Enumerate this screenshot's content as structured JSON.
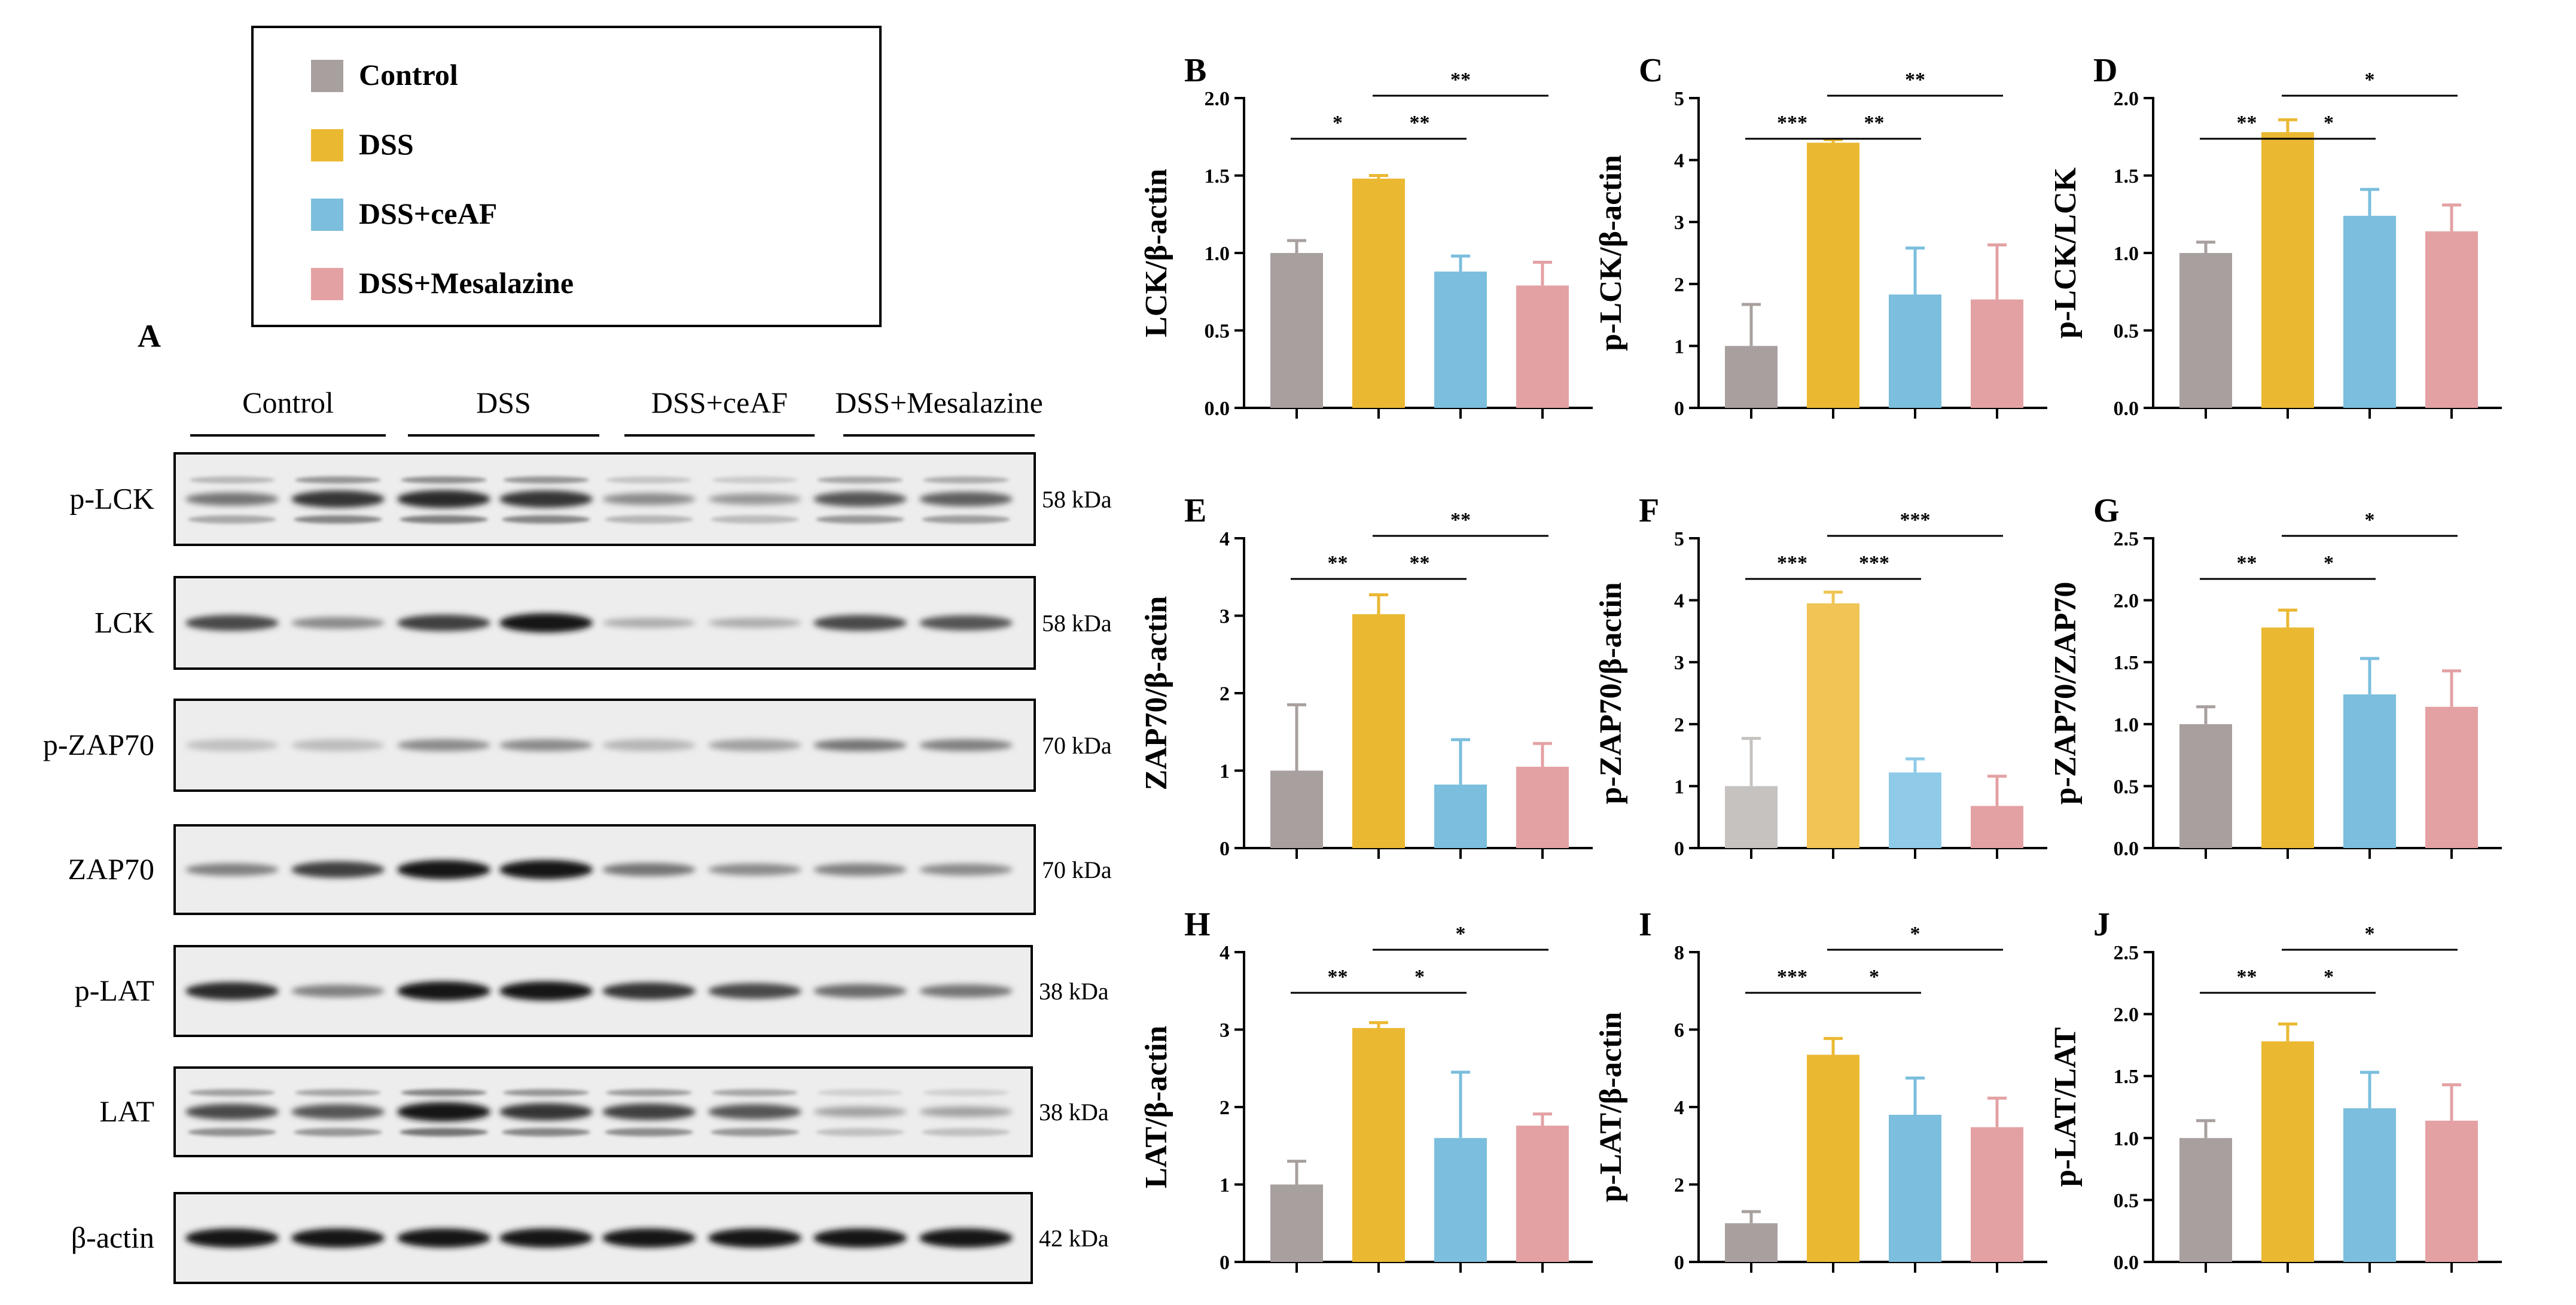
{
  "colors": {
    "Control": "#a8a09e",
    "DSS": "#ebb832",
    "DSS+ceAF": "#7bbedd",
    "DSS+Mesalazine": "#e3a1a3",
    "Control_light": "#c6c2c0",
    "DSS_light": "#f0c455",
    "DSS+ceAF_light": "#8fcbe8"
  },
  "legend": {
    "items": [
      {
        "label": "Control",
        "color": "#a8a09e"
      },
      {
        "label": "DSS",
        "color": "#ebb832"
      },
      {
        "label": "DSS+ceAF",
        "color": "#7bbedd"
      },
      {
        "label": "DSS+Mesalazine",
        "color": "#e3a1a3"
      }
    ]
  },
  "blot": {
    "panel_letter": "A",
    "groups": [
      "Control",
      "DSS",
      "DSS+ceAF",
      "DSS+Mesalazine"
    ],
    "rows": [
      {
        "protein": "p-LCK",
        "kda": "58 kDa",
        "intensity": [
          0.55,
          0.85,
          0.9,
          0.85,
          0.45,
          0.4,
          0.7,
          0.65
        ],
        "style": "multi"
      },
      {
        "protein": "LCK",
        "kda": "58 kDa",
        "intensity": [
          0.75,
          0.45,
          0.8,
          1.0,
          0.3,
          0.3,
          0.75,
          0.7
        ],
        "style": "single"
      },
      {
        "protein": "p-ZAP70",
        "kda": "70 kDa",
        "intensity": [
          0.2,
          0.22,
          0.45,
          0.45,
          0.25,
          0.35,
          0.55,
          0.5
        ],
        "style": "faint"
      },
      {
        "protein": "ZAP70",
        "kda": "70 kDa",
        "intensity": [
          0.5,
          0.8,
          1.0,
          1.0,
          0.55,
          0.45,
          0.5,
          0.45
        ],
        "style": "single"
      },
      {
        "protein": "p-LAT",
        "kda": "38 kDa",
        "intensity": [
          0.9,
          0.5,
          1.0,
          1.0,
          0.85,
          0.75,
          0.6,
          0.55
        ],
        "style": "single"
      },
      {
        "protein": "LAT",
        "kda": "38 kDa",
        "intensity": [
          0.75,
          0.7,
          1.0,
          0.85,
          0.8,
          0.7,
          0.35,
          0.35
        ],
        "style": "multi"
      },
      {
        "protein": "β-actin",
        "kda": "42 kDa",
        "intensity": [
          1.0,
          1.0,
          1.0,
          1.0,
          1.0,
          1.0,
          1.0,
          1.0
        ],
        "style": "single"
      }
    ]
  },
  "chart_data": [
    {
      "panel": "B",
      "type": "bar",
      "categories": [
        "Control",
        "DSS",
        "DSS+ceAF",
        "DSS+Mesalazine"
      ],
      "values": [
        1.0,
        1.48,
        0.88,
        0.79
      ],
      "errors": [
        0.08,
        0.02,
        0.1,
        0.15
      ],
      "ylabel": "LCK/β-actin",
      "ylim": [
        0,
        2.0
      ],
      "ticks": [
        "0.0",
        "0.5",
        "1.0",
        "1.5",
        "2.0"
      ],
      "sig": [
        {
          "from": 0,
          "to": 1,
          "label": "*",
          "level": 0
        },
        {
          "from": 1,
          "to": 2,
          "label": "**",
          "level": 0
        },
        {
          "from": 1,
          "to": 3,
          "label": "**",
          "level": 1
        }
      ]
    },
    {
      "panel": "C",
      "type": "bar",
      "categories": [
        "Control",
        "DSS",
        "DSS+ceAF",
        "DSS+Mesalazine"
      ],
      "values": [
        1.0,
        4.28,
        1.83,
        1.75
      ],
      "errors": [
        0.67,
        0.05,
        0.75,
        0.88
      ],
      "ylabel": "p-LCK/β-actin",
      "ylim": [
        0,
        5
      ],
      "ticks": [
        "0",
        "1",
        "2",
        "3",
        "4",
        "5"
      ],
      "sig": [
        {
          "from": 0,
          "to": 1,
          "label": "***",
          "level": 0
        },
        {
          "from": 1,
          "to": 2,
          "label": "**",
          "level": 0
        },
        {
          "from": 1,
          "to": 3,
          "label": "**",
          "level": 1
        }
      ]
    },
    {
      "panel": "D",
      "type": "bar",
      "categories": [
        "Control",
        "DSS",
        "DSS+ceAF",
        "DSS+Mesalazine"
      ],
      "values": [
        1.0,
        1.78,
        1.24,
        1.14
      ],
      "errors": [
        0.07,
        0.08,
        0.17,
        0.17
      ],
      "ylabel": "p-LCK/LCK",
      "ylim": [
        0,
        2.0
      ],
      "ticks": [
        "0.0",
        "0.5",
        "1.0",
        "1.5",
        "2.0"
      ],
      "sig": [
        {
          "from": 0,
          "to": 1,
          "label": "**",
          "level": 0
        },
        {
          "from": 1,
          "to": 2,
          "label": "*",
          "level": 0
        },
        {
          "from": 1,
          "to": 3,
          "label": "*",
          "level": 1
        }
      ]
    },
    {
      "panel": "E",
      "type": "bar",
      "categories": [
        "Control",
        "DSS",
        "DSS+ceAF",
        "DSS+Mesalazine"
      ],
      "values": [
        1.0,
        3.02,
        0.82,
        1.05
      ],
      "errors": [
        0.85,
        0.25,
        0.58,
        0.3
      ],
      "ylabel": "ZAP70/β-actin",
      "ylim": [
        0,
        4
      ],
      "ticks": [
        "0",
        "1",
        "2",
        "3",
        "4"
      ],
      "sig": [
        {
          "from": 0,
          "to": 1,
          "label": "**",
          "level": 0
        },
        {
          "from": 1,
          "to": 2,
          "label": "**",
          "level": 0
        },
        {
          "from": 1,
          "to": 3,
          "label": "**",
          "level": 1
        }
      ]
    },
    {
      "panel": "F",
      "type": "bar",
      "categories": [
        "Control",
        "DSS",
        "DSS+ceAF",
        "DSS+Mesalazine"
      ],
      "values": [
        1.0,
        3.95,
        1.22,
        0.68
      ],
      "errors": [
        0.77,
        0.18,
        0.22,
        0.48
      ],
      "ylabel": "p-ZAP70/β-actin",
      "ylim": [
        0,
        5
      ],
      "ticks": [
        "0",
        "1",
        "2",
        "3",
        "4",
        "5"
      ],
      "light": true,
      "sig": [
        {
          "from": 0,
          "to": 1,
          "label": "***",
          "level": 0
        },
        {
          "from": 1,
          "to": 2,
          "label": "***",
          "level": 0
        },
        {
          "from": 1,
          "to": 3,
          "label": "***",
          "level": 1
        }
      ]
    },
    {
      "panel": "G",
      "type": "bar",
      "categories": [
        "Control",
        "DSS",
        "DSS+ceAF",
        "DSS+Mesalazine"
      ],
      "values": [
        1.0,
        1.78,
        1.24,
        1.14
      ],
      "errors": [
        0.14,
        0.14,
        0.29,
        0.29
      ],
      "ylabel": "p-ZAP70/ZAP70",
      "ylim": [
        0,
        2.5
      ],
      "ticks": [
        "0.0",
        "0.5",
        "1.0",
        "1.5",
        "2.0",
        "2.5"
      ],
      "sig": [
        {
          "from": 0,
          "to": 1,
          "label": "**",
          "level": 0
        },
        {
          "from": 1,
          "to": 2,
          "label": "*",
          "level": 0
        },
        {
          "from": 1,
          "to": 3,
          "label": "*",
          "level": 1
        }
      ]
    },
    {
      "panel": "H",
      "type": "bar",
      "categories": [
        "Control",
        "DSS",
        "DSS+ceAF",
        "DSS+Mesalazine"
      ],
      "values": [
        1.0,
        3.02,
        1.6,
        1.76
      ],
      "errors": [
        0.3,
        0.07,
        0.85,
        0.15
      ],
      "ylabel": "LAT/β-actin",
      "ylim": [
        0,
        4
      ],
      "ticks": [
        "0",
        "1",
        "2",
        "3",
        "4"
      ],
      "sig": [
        {
          "from": 0,
          "to": 1,
          "label": "**",
          "level": 0
        },
        {
          "from": 1,
          "to": 2,
          "label": "*",
          "level": 0
        },
        {
          "from": 1,
          "to": 3,
          "label": "*",
          "level": 1
        }
      ]
    },
    {
      "panel": "I",
      "type": "bar",
      "categories": [
        "Control",
        "DSS",
        "DSS+ceAF",
        "DSS+Mesalazine"
      ],
      "values": [
        1.0,
        5.35,
        3.8,
        3.48
      ],
      "errors": [
        0.3,
        0.42,
        0.95,
        0.75
      ],
      "ylabel": "p-LAT/β-actin",
      "ylim": [
        0,
        8
      ],
      "ticks": [
        "0",
        "2",
        "4",
        "6",
        "8"
      ],
      "sig": [
        {
          "from": 0,
          "to": 1,
          "label": "***",
          "level": 0
        },
        {
          "from": 1,
          "to": 2,
          "label": "*",
          "level": 0
        },
        {
          "from": 1,
          "to": 3,
          "label": "*",
          "level": 1
        }
      ]
    },
    {
      "panel": "J",
      "type": "bar",
      "categories": [
        "Control",
        "DSS",
        "DSS+ceAF",
        "DSS+Mesalazine"
      ],
      "values": [
        1.0,
        1.78,
        1.24,
        1.14
      ],
      "errors": [
        0.14,
        0.14,
        0.29,
        0.29
      ],
      "ylabel": "p-LAT/LAT",
      "ylim": [
        0,
        2.5
      ],
      "ticks": [
        "0.0",
        "0.5",
        "1.0",
        "1.5",
        "2.0",
        "2.5"
      ],
      "sig": [
        {
          "from": 0,
          "to": 1,
          "label": "**",
          "level": 0
        },
        {
          "from": 1,
          "to": 2,
          "label": "*",
          "level": 0
        },
        {
          "from": 1,
          "to": 3,
          "label": "*",
          "level": 1
        }
      ]
    }
  ]
}
